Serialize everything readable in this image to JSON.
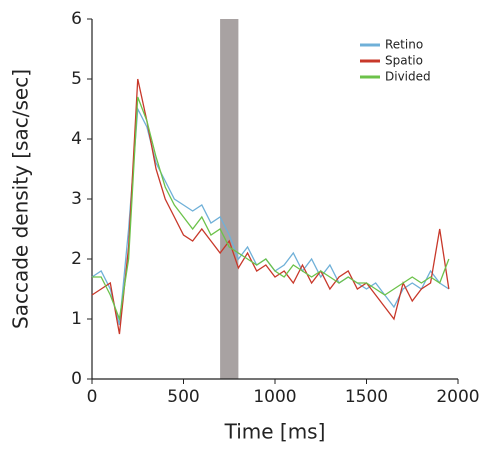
{
  "chart_data": {
    "type": "line",
    "xlabel": "Time [ms]",
    "ylabel": "Saccade density [sac/sec]",
    "x": [
      0,
      50,
      100,
      150,
      200,
      250,
      300,
      350,
      400,
      450,
      500,
      550,
      600,
      650,
      700,
      750,
      800,
      850,
      900,
      950,
      1000,
      1050,
      1100,
      1150,
      1200,
      1250,
      1300,
      1350,
      1400,
      1450,
      1500,
      1550,
      1600,
      1650,
      1700,
      1750,
      1800,
      1850,
      1900,
      1950
    ],
    "series": [
      {
        "name": "Retino",
        "color": "#6fb0d8",
        "values": [
          1.7,
          1.8,
          1.5,
          0.9,
          2.5,
          4.5,
          4.2,
          3.6,
          3.3,
          3.0,
          2.9,
          2.8,
          2.9,
          2.6,
          2.7,
          2.4,
          2.0,
          2.2,
          1.9,
          2.0,
          1.8,
          1.9,
          2.1,
          1.8,
          2.0,
          1.7,
          1.9,
          1.6,
          1.7,
          1.6,
          1.5,
          1.6,
          1.4,
          1.2,
          1.5,
          1.6,
          1.5,
          1.8,
          1.6,
          1.5
        ]
      },
      {
        "name": "Spatio",
        "color": "#c8382a",
        "values": [
          1.4,
          1.5,
          1.6,
          0.75,
          2.2,
          5.0,
          4.3,
          3.5,
          3.0,
          2.7,
          2.4,
          2.3,
          2.5,
          2.3,
          2.1,
          2.3,
          1.85,
          2.1,
          1.8,
          1.9,
          1.7,
          1.8,
          1.6,
          1.9,
          1.6,
          1.8,
          1.5,
          1.7,
          1.8,
          1.5,
          1.6,
          1.4,
          1.2,
          1.0,
          1.6,
          1.3,
          1.5,
          1.6,
          2.5,
          1.5
        ]
      },
      {
        "name": "Divided",
        "color": "#6cc24a",
        "values": [
          1.7,
          1.7,
          1.4,
          1.0,
          2.0,
          4.7,
          4.3,
          3.7,
          3.2,
          2.9,
          2.7,
          2.5,
          2.7,
          2.4,
          2.5,
          2.2,
          2.1,
          2.0,
          1.9,
          2.0,
          1.8,
          1.7,
          1.9,
          1.8,
          1.7,
          1.8,
          1.7,
          1.6,
          1.7,
          1.6,
          1.6,
          1.5,
          1.4,
          1.5,
          1.6,
          1.7,
          1.6,
          1.7,
          1.6,
          2.0
        ]
      }
    ],
    "shaded_span": {
      "x": [
        700,
        800
      ],
      "color": "#a8a2a2"
    },
    "xlim": [
      0,
      2000
    ],
    "xticks": [
      0,
      500,
      1000,
      1500,
      2000
    ],
    "ylim": [
      0,
      6
    ],
    "yticks": [
      0,
      1,
      2,
      3,
      4,
      5,
      6
    ],
    "legend": "upper right"
  }
}
